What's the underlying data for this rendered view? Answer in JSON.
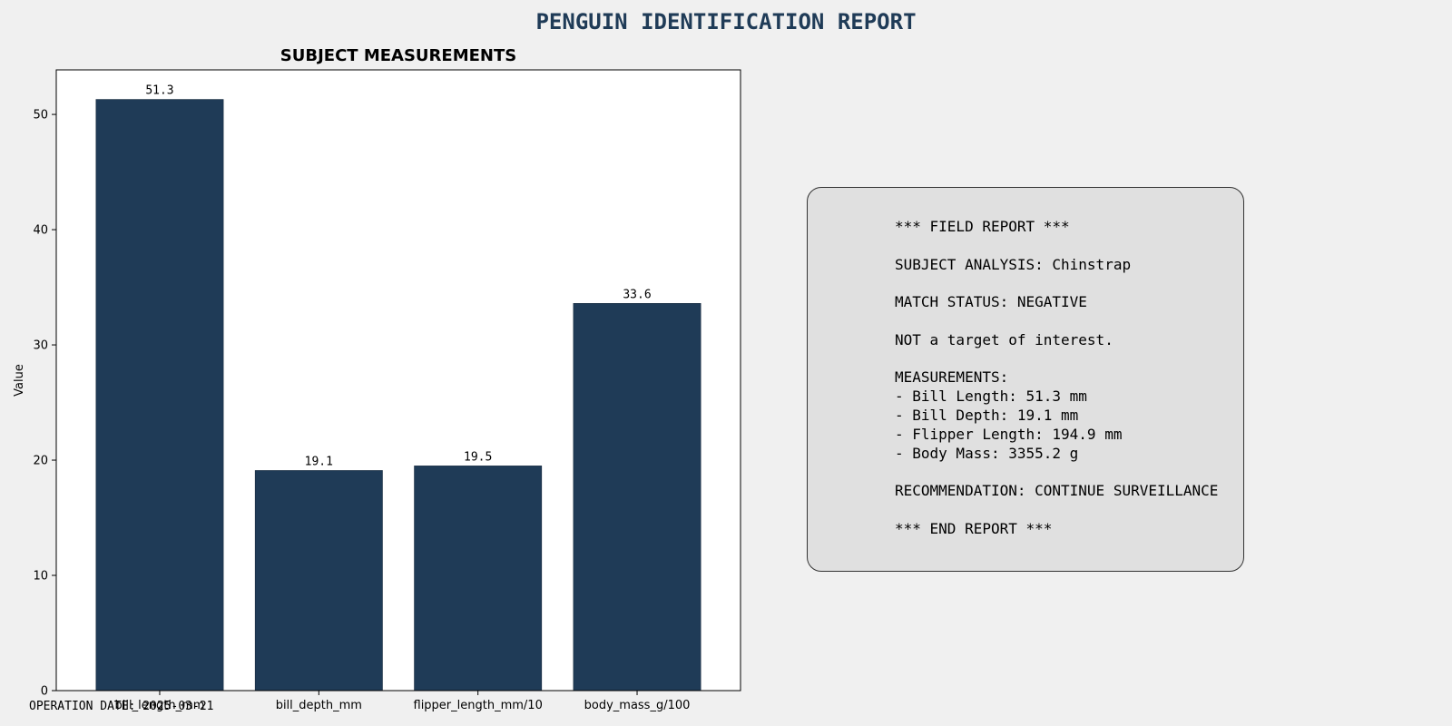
{
  "page": {
    "title": "PENGUIN IDENTIFICATION REPORT",
    "footer": "OPERATION DATE: 2025-03-21"
  },
  "colors": {
    "bar": "#1f3b57",
    "title": "#1f3b57",
    "page_background": "#f0f0f0",
    "report_background": "#e0e0e0"
  },
  "chart_data": {
    "type": "bar",
    "title": "SUBJECT MEASUREMENTS",
    "xlabel": "",
    "ylabel": "Value",
    "categories": [
      "bill_length_mm",
      "bill_depth_mm",
      "flipper_length_mm/10",
      "body_mass_g/100"
    ],
    "values": [
      51.3,
      19.1,
      19.5,
      33.6
    ],
    "data_labels": [
      "51.3",
      "19.1",
      "19.5",
      "33.6"
    ],
    "ylim": [
      0,
      53.865
    ],
    "yticks": [
      0,
      10,
      20,
      30,
      40,
      50
    ],
    "grid": false,
    "legend": "none"
  },
  "report": {
    "lines": [
      "*** FIELD REPORT ***",
      "",
      "SUBJECT ANALYSIS: Chinstrap",
      "",
      "MATCH STATUS: NEGATIVE",
      "",
      "NOT a target of interest.",
      "",
      "MEASUREMENTS:",
      "- Bill Length: 51.3 mm",
      "- Bill Depth: 19.1 mm",
      "- Flipper Length: 194.9 mm",
      "- Body Mass: 3355.2 g",
      "",
      "RECOMMENDATION: CONTINUE SURVEILLANCE",
      "",
      "*** END REPORT ***"
    ]
  }
}
